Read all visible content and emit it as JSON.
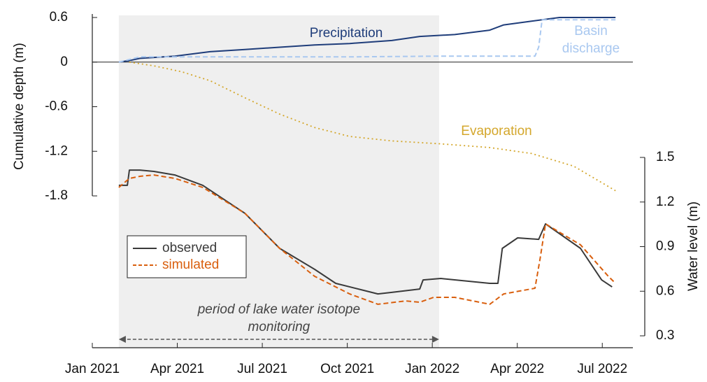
{
  "chart_data": {
    "type": "line",
    "ylabel": "Cumulative depth (m)",
    "y2label": "Water level (m)",
    "xlim": [
      2021,
      2022.59
    ],
    "xticks": [
      {
        "value": 2021,
        "label": "Jan 2021"
      },
      {
        "value": 2021.25,
        "label": "Apr 2021"
      },
      {
        "value": 2021.5,
        "label": "Jul 2021"
      },
      {
        "value": 2021.75,
        "label": "Oct 2021"
      },
      {
        "value": 2022,
        "label": "Jan 2022"
      },
      {
        "value": 2022.25,
        "label": "Apr 2022"
      },
      {
        "value": 2022.5,
        "label": "Jul 2022"
      }
    ],
    "ylim": [
      -1.8,
      0.6
    ],
    "yticks": [
      -1.8,
      -1.2,
      -0.6,
      0,
      0.6
    ],
    "y2lim": [
      0.3,
      1.5
    ],
    "y2ticks": [
      0.3,
      0.6,
      0.9,
      1.2,
      1.5
    ],
    "shaded_region": {
      "x": [
        2021.078,
        2022.02
      ],
      "color": "#efefef"
    },
    "annotation": "period of lake water isotope monitoring",
    "legend": "center left",
    "series": [
      {
        "name": "Precipitation",
        "color": "#1f3d7a",
        "style": "solid",
        "in_legend": false,
        "x": [
          2021.078,
          2021.109,
          2021.14,
          2021.243,
          2021.346,
          2021.449,
          2021.551,
          2021.654,
          2021.757,
          2021.881,
          2021.963,
          2022.066,
          2022.169,
          2022.21,
          2022.292,
          2022.374,
          2022.539
        ],
        "values": [
          0,
          0.02,
          0.05,
          0.08,
          0.14,
          0.17,
          0.2,
          0.23,
          0.25,
          0.29,
          0.345,
          0.37,
          0.43,
          0.5,
          0.55,
          0.6,
          0.6
        ]
      },
      {
        "name": "Basin discharge",
        "color": "#a9c8f0",
        "style": "dashed",
        "in_legend": false,
        "x": [
          2021.078,
          2021.14,
          2021.757,
          2022.025,
          2022.302,
          2022.313,
          2022.323,
          2022.539
        ],
        "values": [
          0,
          0.07,
          0.07,
          0.08,
          0.08,
          0.2,
          0.57,
          0.57
        ]
      },
      {
        "name": "Evaporation",
        "color": "#d4a72c",
        "style": "dotted",
        "in_legend": false,
        "x": [
          2021.109,
          2021.181,
          2021.263,
          2021.346,
          2021.449,
          2021.551,
          2021.654,
          2021.757,
          2021.881,
          2022.025,
          2022.169,
          2022.292,
          2022.416,
          2022.539
        ],
        "values": [
          0,
          -0.05,
          -0.13,
          -0.25,
          -0.48,
          -0.7,
          -0.88,
          -1.0,
          -1.06,
          -1.1,
          -1.15,
          -1.23,
          -1.4,
          -1.73
        ]
      },
      {
        "name": "observed",
        "color": "#3a3a3a",
        "style": "solid",
        "in_legend": true,
        "axis": "y2",
        "x": [
          2021.078,
          2021.103,
          2021.109,
          2021.14,
          2021.181,
          2021.243,
          2021.325,
          2021.387,
          2021.449,
          2021.551,
          2021.654,
          2021.716,
          2021.798,
          2021.84,
          2021.881,
          2021.963,
          2021.973,
          2022.025,
          2022.169,
          2022.193,
          2022.206,
          2022.251,
          2022.313,
          2022.333,
          2022.436,
          2022.498,
          2022.529
        ],
        "values": [
          1.312,
          1.312,
          1.415,
          1.415,
          1.406,
          1.382,
          1.312,
          1.218,
          1.124,
          0.888,
          0.747,
          0.653,
          0.606,
          0.582,
          0.592,
          0.615,
          0.676,
          0.686,
          0.653,
          0.653,
          0.888,
          0.959,
          0.949,
          1.053,
          0.888,
          0.676,
          0.629
        ]
      },
      {
        "name": "simulated",
        "color": "#d95f0e",
        "style": "dashed",
        "in_legend": true,
        "axis": "y2",
        "x": [
          2021.078,
          2021.109,
          2021.14,
          2021.181,
          2021.243,
          2021.325,
          2021.449,
          2021.551,
          2021.654,
          2021.757,
          2021.84,
          2021.922,
          2021.963,
          2022.004,
          2022.066,
          2022.169,
          2022.21,
          2022.302,
          2022.317,
          2022.333,
          2022.436,
          2022.518,
          2022.539
        ],
        "values": [
          1.298,
          1.359,
          1.373,
          1.382,
          1.359,
          1.298,
          1.124,
          0.888,
          0.7,
          0.582,
          0.512,
          0.535,
          0.526,
          0.559,
          0.559,
          0.512,
          0.582,
          0.62,
          0.818,
          1.053,
          0.912,
          0.7,
          0.653
        ]
      }
    ]
  }
}
